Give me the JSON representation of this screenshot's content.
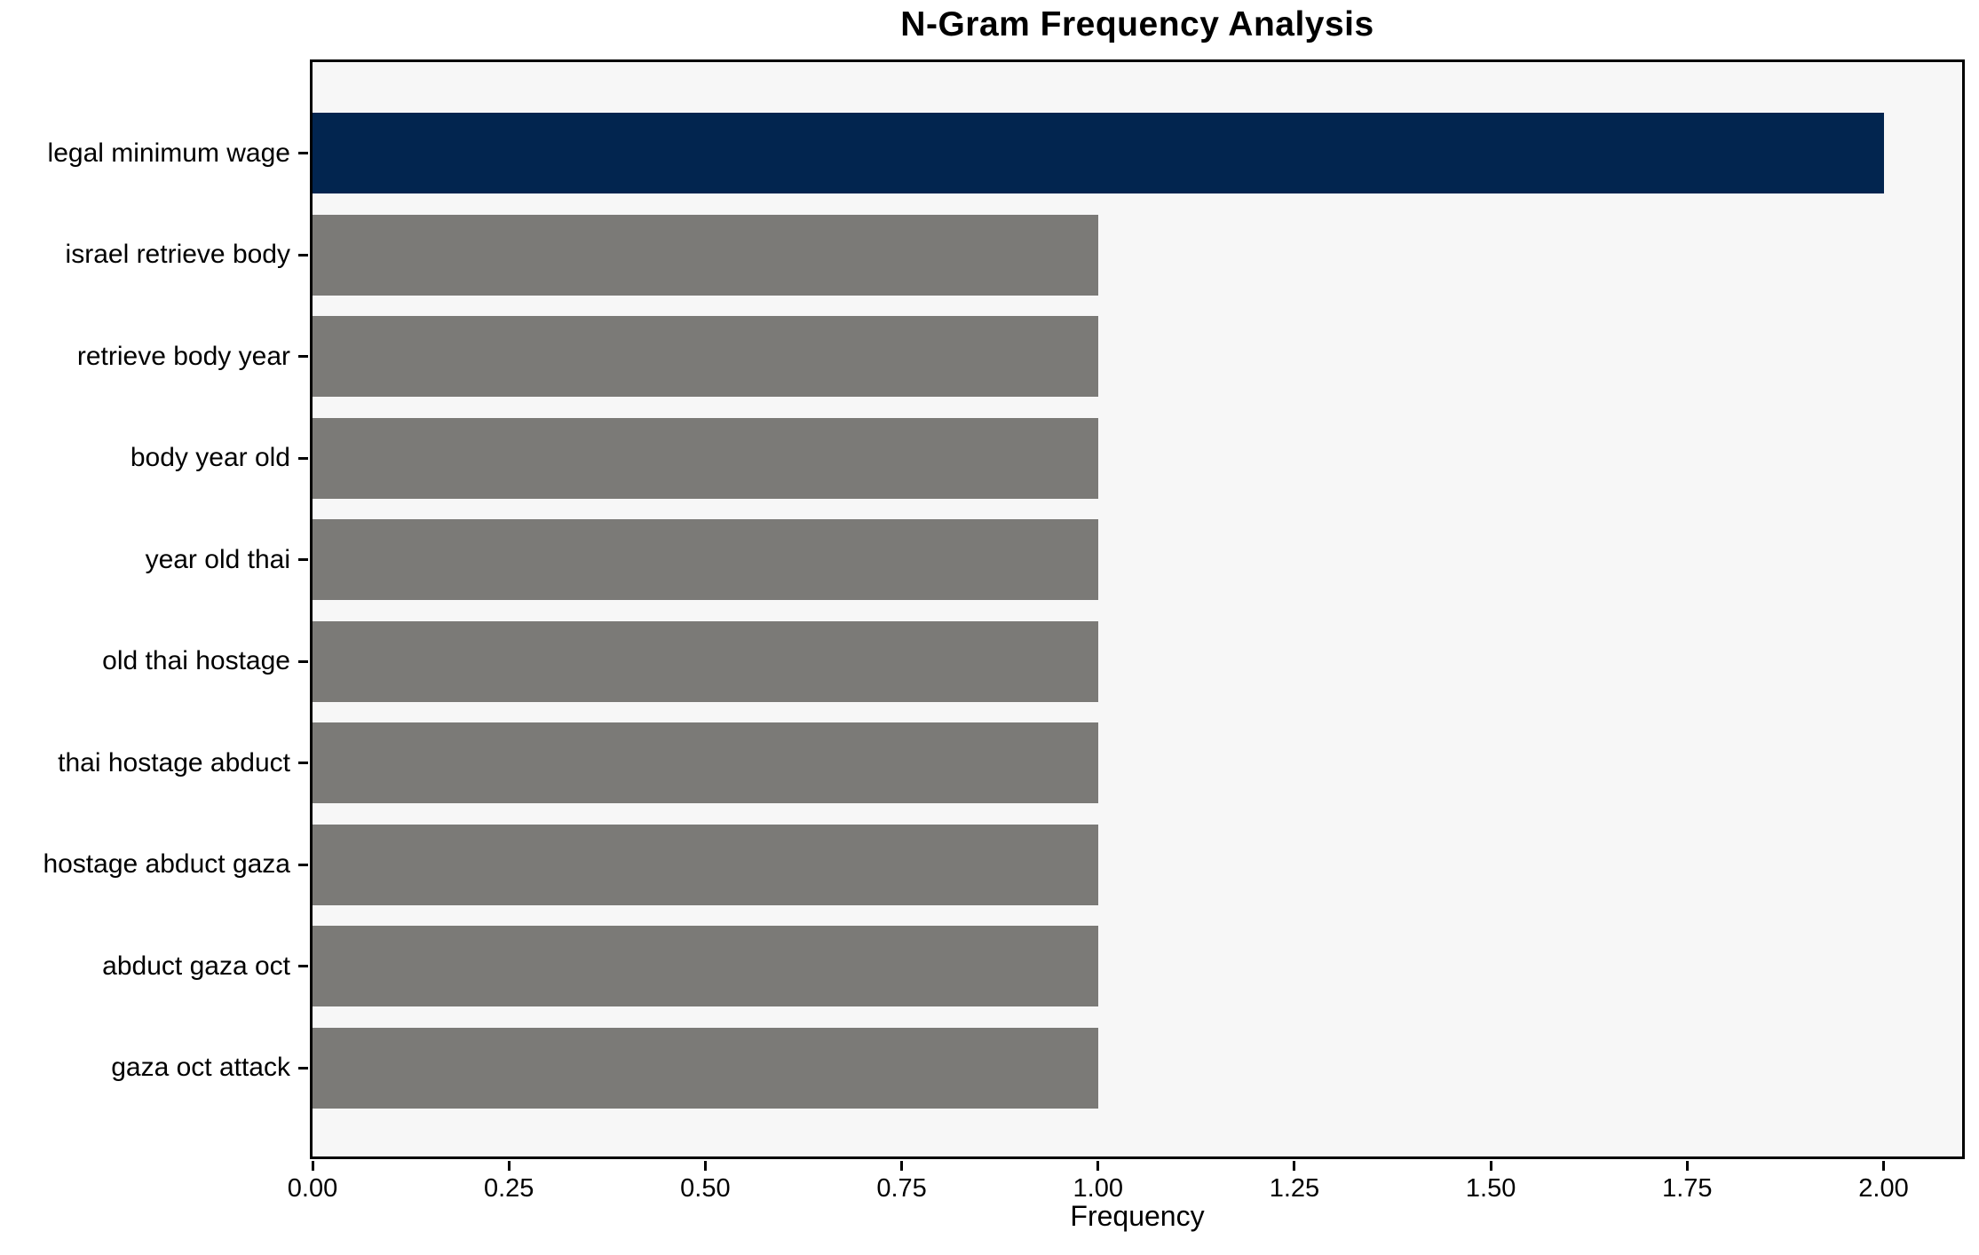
{
  "chart_data": {
    "type": "bar",
    "orientation": "horizontal",
    "title": "N-Gram Frequency Analysis",
    "xlabel": "Frequency",
    "ylabel": "",
    "categories": [
      "legal minimum wage",
      "israel retrieve body",
      "retrieve body year",
      "body year old",
      "year old thai",
      "old thai hostage",
      "thai hostage abduct",
      "hostage abduct gaza",
      "abduct gaza oct",
      "gaza oct attack"
    ],
    "values": [
      2,
      1,
      1,
      1,
      1,
      1,
      1,
      1,
      1,
      1
    ],
    "bar_colors": [
      "#02254f",
      "#7b7a77",
      "#7b7a77",
      "#7b7a77",
      "#7b7a77",
      "#7b7a77",
      "#7b7a77",
      "#7b7a77",
      "#7b7a77",
      "#7b7a77"
    ],
    "xticks": [
      "0.00",
      "0.25",
      "0.50",
      "0.75",
      "1.00",
      "1.25",
      "1.50",
      "1.75",
      "2.00"
    ],
    "xlim": [
      0,
      2.1
    ],
    "legend": "none",
    "grid": "off",
    "colors": {
      "highlight": "#02254f",
      "default_bar": "#7b7a77",
      "plot_background": "#f7f7f7",
      "figure_background": "#ffffff",
      "axis": "#000000",
      "text": "#000000"
    }
  }
}
